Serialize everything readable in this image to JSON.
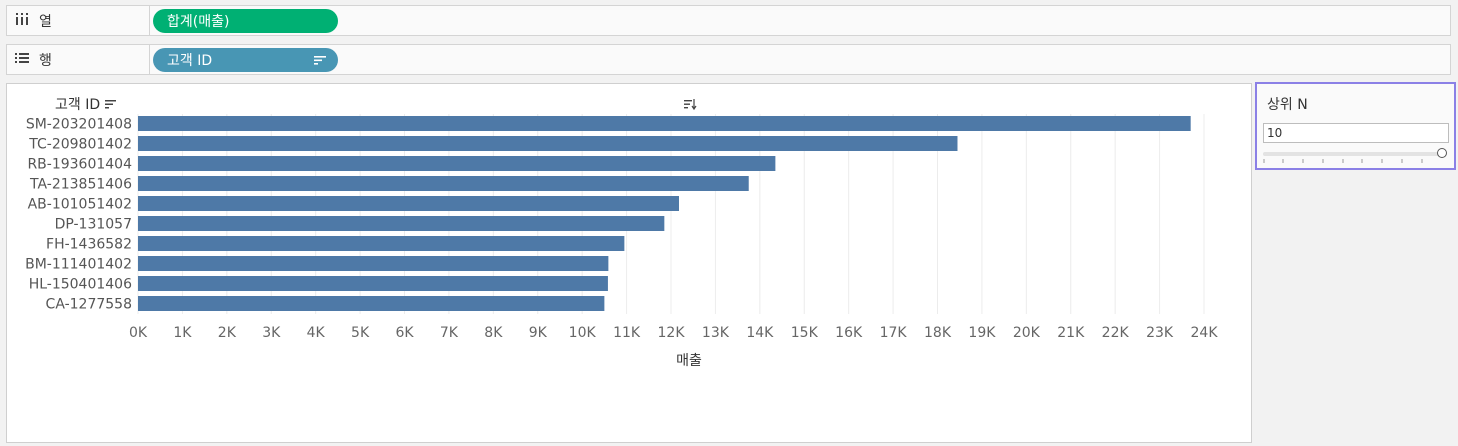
{
  "shelves": {
    "columns": {
      "label": "열",
      "icon": "columns-icon",
      "pill": "합계(매출)",
      "pill_color": "#00b073"
    },
    "rows": {
      "label": "행",
      "icon": "rows-icon",
      "pill": "고객 ID",
      "pill_color": "#4896b4"
    }
  },
  "parameter": {
    "title": "상위 N",
    "value": "10",
    "slider_level": 1.0,
    "accent": "#8b80e6"
  },
  "chart_data": {
    "type": "bar",
    "orientation": "horizontal",
    "row_header": "고객 ID",
    "categories": [
      "SM-203201408",
      "TC-209801402",
      "RB-193601404",
      "TA-213851406",
      "AB-101051402",
      "DP-131057",
      "FH-1436582",
      "BM-111401402",
      "HL-150401406",
      "CA-1277558"
    ],
    "values": [
      23700,
      18450,
      14350,
      13750,
      12180,
      11850,
      10950,
      10590,
      10580,
      10500
    ],
    "xlabel": "매출",
    "xlim": [
      0,
      24000
    ],
    "x_ticks": [
      "0K",
      "1K",
      "2K",
      "3K",
      "4K",
      "5K",
      "6K",
      "7K",
      "8K",
      "9K",
      "10K",
      "11K",
      "12K",
      "13K",
      "14K",
      "15K",
      "16K",
      "17K",
      "18K",
      "19K",
      "20K",
      "21K",
      "22K",
      "23K",
      "24K"
    ],
    "bar_color": "#4e79a7",
    "grid": true
  }
}
